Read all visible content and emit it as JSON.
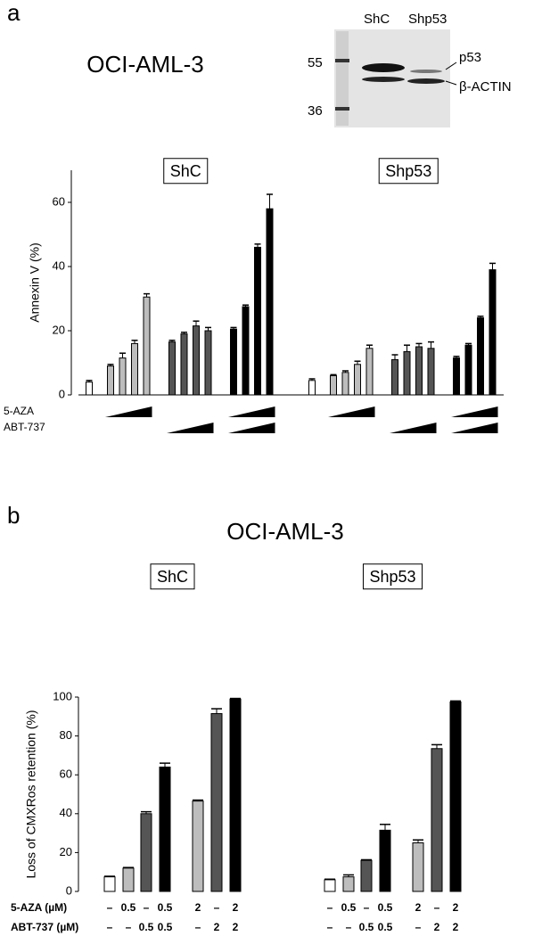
{
  "chart_data": [
    {
      "type": "bar",
      "panel": "a",
      "title": "OCI-AML-3",
      "ylabel": "Annexin V (%)",
      "ylim": [
        0,
        70
      ],
      "yticks": [
        0,
        20,
        40,
        60
      ],
      "colors": [
        "#ffffff",
        "#bdbdbd",
        "#bdbdbd",
        "#bdbdbd",
        "#bdbdbd",
        "#555555",
        "#555555",
        "#555555",
        "#555555",
        "#000000",
        "#000000",
        "#000000",
        "#000000"
      ],
      "groups": [
        {
          "label": "ShC",
          "values": [
            4,
            9,
            11.5,
            16,
            30.5,
            16.5,
            19,
            21.5,
            20,
            20.5,
            27.5,
            46,
            58
          ],
          "errors": [
            0.5,
            0.5,
            1.5,
            1,
            1,
            0.5,
            0.5,
            1.5,
            1,
            0.5,
            0.5,
            1,
            4.5
          ]
        },
        {
          "label": "Shp53",
          "values": [
            4.5,
            6,
            7,
            9.5,
            14.5,
            11,
            13.5,
            15,
            14.5,
            11.5,
            15.5,
            24,
            39
          ],
          "errors": [
            0.5,
            0.3,
            0.5,
            1,
            1,
            1.5,
            2,
            1,
            2,
            0.5,
            0.5,
            0.5,
            2
          ]
        }
      ],
      "row_labels": [
        "5-AZA",
        "ABT-737"
      ]
    },
    {
      "type": "bar",
      "panel": "b",
      "title": "OCI-AML-3",
      "ylabel": "Loss of CMXRos retention (%)",
      "ylim": [
        0,
        100
      ],
      "yticks": [
        0,
        20,
        40,
        60,
        80,
        100
      ],
      "colors": [
        "#ffffff",
        "#bdbdbd",
        "#555555",
        "#000000",
        "#bdbdbd",
        "#555555",
        "#000000"
      ],
      "groups": [
        {
          "label": "ShC",
          "values": [
            7.5,
            12,
            40,
            64,
            46.5,
            91.5,
            99
          ],
          "errors": [
            0.3,
            0.3,
            1,
            2,
            0.5,
            2.5,
            0.3
          ],
          "rows": [
            [
              "–",
              "0.5",
              "–",
              "0.5",
              "2",
              "–",
              "2"
            ],
            [
              "–",
              "–",
              "0.5",
              "0.5",
              "–",
              "2",
              "2"
            ]
          ]
        },
        {
          "label": "Shp53",
          "values": [
            6,
            7.5,
            16,
            31.5,
            25,
            73.5,
            97.5
          ],
          "errors": [
            0.3,
            1,
            0.3,
            3,
            1.5,
            2,
            0.5
          ],
          "rows": [
            [
              "–",
              "0.5",
              "–",
              "0.5",
              "2",
              "–",
              "2"
            ],
            [
              "–",
              "–",
              "0.5",
              "0.5",
              "–",
              "2",
              "2"
            ]
          ]
        }
      ],
      "row_labels": [
        "5-AZA (µM)",
        "ABT-737 (µM)"
      ]
    }
  ],
  "blot": {
    "lanes": [
      "ShC",
      "Shp53"
    ],
    "markers": [
      "55",
      "36"
    ],
    "bands": [
      "p53",
      "β-ACTIN"
    ]
  }
}
